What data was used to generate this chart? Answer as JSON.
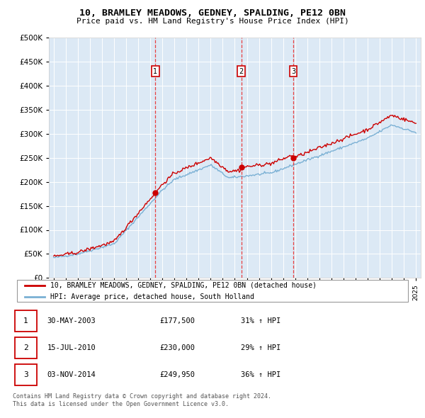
{
  "title": "10, BRAMLEY MEADOWS, GEDNEY, SPALDING, PE12 0BN",
  "subtitle": "Price paid vs. HM Land Registry's House Price Index (HPI)",
  "legend_line1": "10, BRAMLEY MEADOWS, GEDNEY, SPALDING, PE12 0BN (detached house)",
  "legend_line2": "HPI: Average price, detached house, South Holland",
  "footer1": "Contains HM Land Registry data © Crown copyright and database right 2024.",
  "footer2": "This data is licensed under the Open Government Licence v3.0.",
  "transactions": [
    {
      "num": 1,
      "date": "30-MAY-2003",
      "price": "£177,500",
      "pct": "31% ↑ HPI",
      "year": 2003.42
    },
    {
      "num": 2,
      "date": "15-JUL-2010",
      "price": "£230,000",
      "pct": "29% ↑ HPI",
      "year": 2010.54
    },
    {
      "num": 3,
      "date": "03-NOV-2014",
      "price": "£249,950",
      "pct": "36% ↑ HPI",
      "year": 2014.84
    }
  ],
  "transaction_marker_prices": [
    177500,
    230000,
    249950
  ],
  "ylim": [
    0,
    500000
  ],
  "yticks": [
    0,
    50000,
    100000,
    150000,
    200000,
    250000,
    300000,
    350000,
    400000,
    450000,
    500000
  ],
  "background_color": "#dce9f5",
  "red_color": "#cc0000",
  "blue_color": "#7ab0d4",
  "grid_color": "#ffffff",
  "dashed_color": "#e84040",
  "xlim_left": 1994.6,
  "xlim_right": 2025.4
}
